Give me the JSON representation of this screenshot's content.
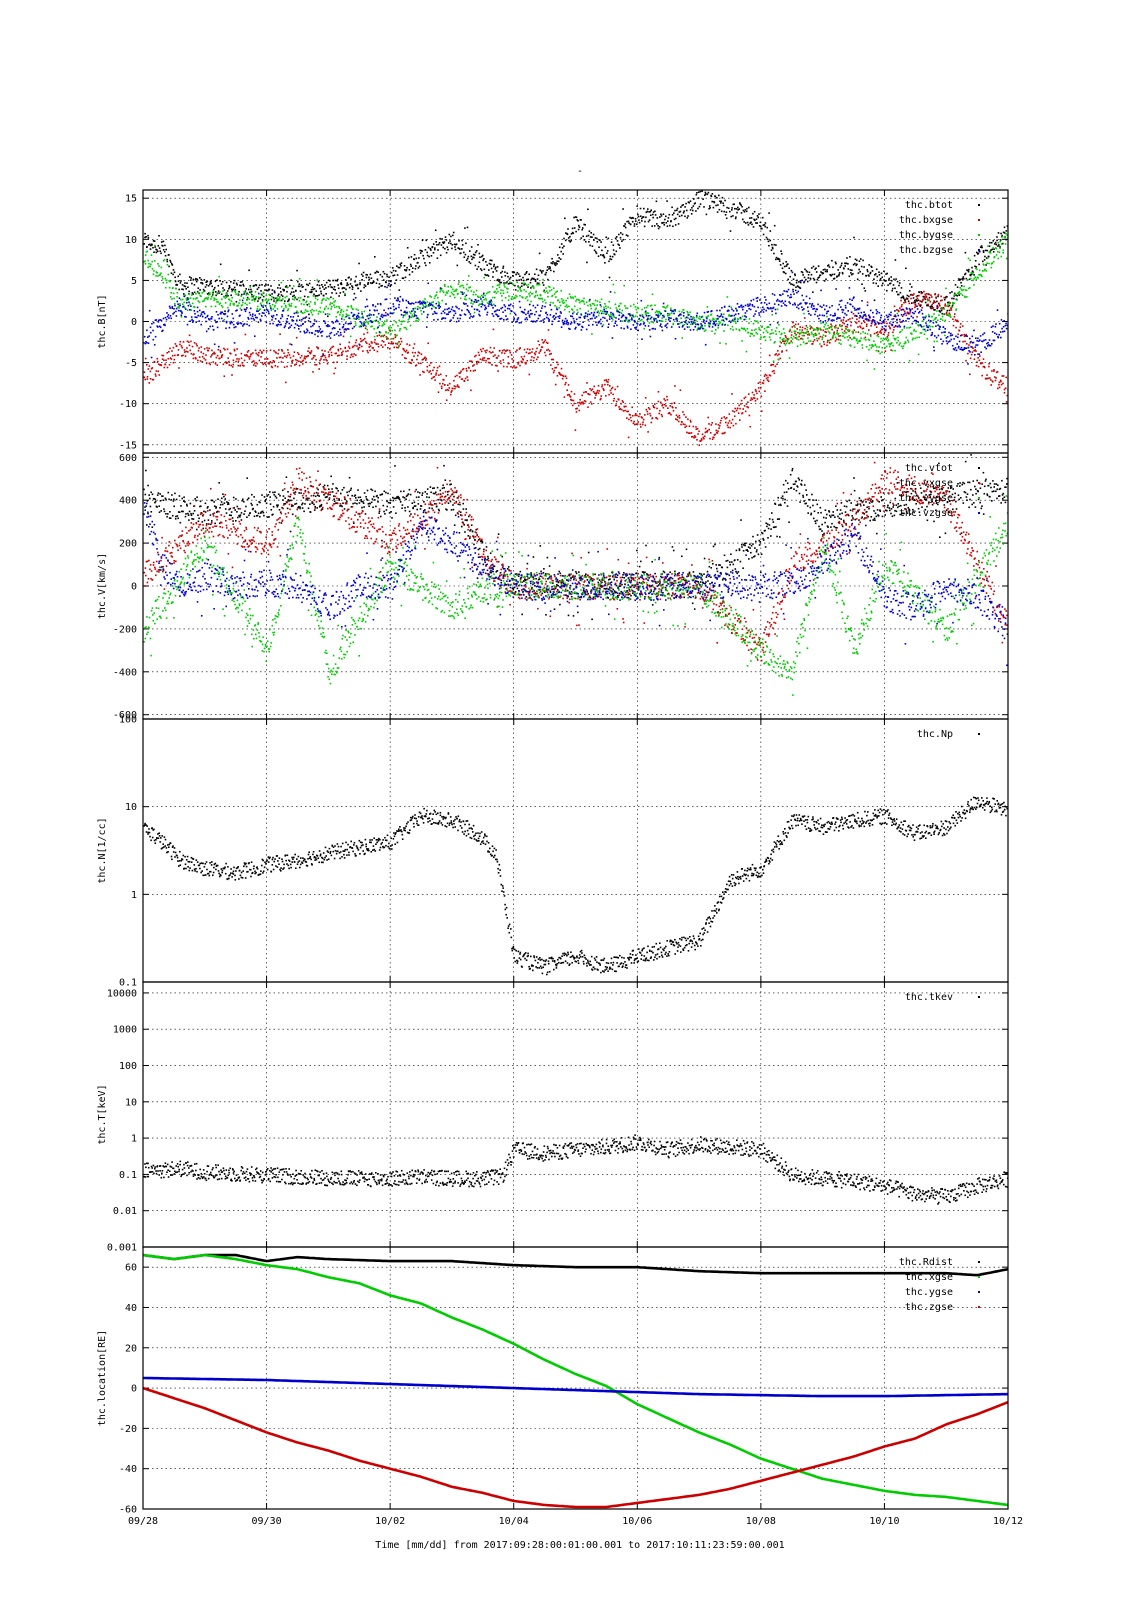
{
  "title": "-",
  "xlabel": "Time [mm/dd]  from 2017:09:28:00:01:00.001  to  2017:10:11:23:59:00.001",
  "colors": {
    "black": "#000000",
    "red": "#cc0000",
    "green": "#00cc00",
    "blue": "#0000cc"
  },
  "chart_data": [
    {
      "type": "scatter",
      "ylabel": "thc.B[nT]",
      "ylim": [
        -16,
        16
      ],
      "yscale": "linear",
      "yticks": [
        -15,
        -10,
        -5,
        0,
        5,
        10,
        15
      ],
      "ytick_labels": [
        "-15",
        "-10",
        "-5",
        "0",
        "5",
        "10",
        "15"
      ],
      "grid": true,
      "legend_placement": "top-right",
      "series": [
        {
          "name": "thc.btot",
          "color": "black",
          "x": [
            0,
            0.3,
            0.6,
            1,
            2,
            3,
            4,
            5,
            5.5,
            6,
            6.5,
            7,
            7.5,
            8,
            8.5,
            9,
            9.5,
            10,
            10.5,
            11,
            11.5,
            12,
            12.5,
            13,
            13.5,
            14
          ],
          "y": [
            10,
            9,
            4.5,
            4.5,
            3.5,
            4,
            5.5,
            10,
            7,
            5,
            5.5,
            12,
            8,
            13,
            12,
            15,
            14,
            12,
            5,
            6,
            7,
            5,
            3,
            2,
            8,
            11
          ]
        },
        {
          "name": "thc.bxgse",
          "color": "red",
          "x": [
            0,
            0.3,
            0.6,
            1,
            2,
            3,
            4,
            5,
            5.5,
            6,
            6.5,
            7,
            7.5,
            8,
            8.5,
            9,
            9.5,
            10,
            10.5,
            11,
            11.5,
            12,
            12.5,
            13,
            13.5,
            14
          ],
          "y": [
            -7,
            -5,
            -3,
            -4,
            -4.5,
            -4,
            -2,
            -8,
            -4,
            -4.5,
            -3,
            -10,
            -8,
            -12,
            -10,
            -14,
            -12,
            -8,
            -1,
            -2,
            0,
            -1,
            3,
            2,
            -5,
            -8
          ]
        },
        {
          "name": "thc.bygse",
          "color": "green",
          "x": [
            0,
            0.3,
            0.6,
            1,
            2,
            3,
            4,
            5,
            5.5,
            6,
            6.5,
            7,
            7.5,
            8,
            8.5,
            9,
            9.5,
            10,
            10.5,
            11,
            11.5,
            12,
            12.5,
            13,
            13.5,
            14
          ],
          "y": [
            8,
            6,
            2,
            3,
            2.5,
            2,
            -1,
            4,
            3,
            4,
            3.5,
            2,
            1.5,
            1,
            1,
            0,
            0,
            -1,
            -2,
            -1,
            -2,
            -3,
            -1,
            1,
            6,
            10
          ]
        },
        {
          "name": "thc.bzgse",
          "color": "blue",
          "x": [
            0,
            0.3,
            0.6,
            1,
            2,
            3,
            4,
            5,
            5.5,
            6,
            6.5,
            7,
            7.5,
            8,
            8.5,
            9,
            9.5,
            10,
            10.5,
            11,
            11.5,
            12,
            12.5,
            13,
            13.5,
            14
          ],
          "y": [
            -2,
            0,
            2,
            0,
            1,
            -1,
            2,
            1,
            2,
            1,
            1,
            0,
            0.5,
            0,
            0.5,
            0,
            1,
            2,
            3,
            1,
            2,
            0,
            1,
            -2,
            -3,
            0
          ]
        }
      ]
    },
    {
      "type": "scatter",
      "ylabel": "thc.V[km/s]",
      "ylim": [
        -620,
        620
      ],
      "yscale": "linear",
      "yticks": [
        -600,
        -400,
        -200,
        0,
        200,
        400,
        600
      ],
      "ytick_labels": [
        "-600",
        "-400",
        "-200",
        "0",
        "200",
        "400",
        "600"
      ],
      "grid": true,
      "legend_placement": "top-right",
      "series": [
        {
          "name": "thc.vtot",
          "color": "black",
          "x": [
            0,
            1,
            2,
            3,
            4,
            5,
            5.6,
            6,
            7,
            8,
            9,
            10,
            10.5,
            11,
            11.5,
            12,
            13,
            14
          ],
          "y": [
            400,
            350,
            380,
            420,
            380,
            420,
            100,
            10,
            10,
            10,
            10,
            200,
            500,
            300,
            350,
            380,
            420,
            450
          ]
        },
        {
          "name": "thc.vxgse",
          "color": "red",
          "x": [
            0,
            1,
            2,
            2.5,
            3,
            4,
            5,
            5.6,
            6,
            7,
            8,
            9,
            10,
            10.5,
            11,
            11.5,
            12,
            13,
            14
          ],
          "y": [
            50,
            300,
            200,
            500,
            400,
            200,
            450,
            100,
            0,
            0,
            0,
            0,
            -300,
            100,
            200,
            300,
            500,
            400,
            -200
          ]
        },
        {
          "name": "thc.vygse",
          "color": "green",
          "x": [
            0,
            1,
            2,
            2.5,
            3,
            4,
            5,
            5.6,
            6,
            7,
            8,
            9,
            10,
            10.5,
            11,
            11.5,
            12,
            13,
            14
          ],
          "y": [
            -200,
            200,
            -300,
            300,
            -400,
            100,
            -100,
            0,
            0,
            0,
            0,
            0,
            -300,
            -400,
            200,
            -300,
            100,
            -200,
            300
          ]
        },
        {
          "name": "thc.vzgse",
          "color": "blue",
          "x": [
            0,
            0.3,
            0.6,
            1,
            1.5,
            2,
            2.5,
            3,
            3.5,
            4,
            4.5,
            5,
            5.5,
            6,
            7,
            8,
            9,
            9.5,
            10,
            10.5,
            11,
            11.5,
            12,
            12.5,
            13,
            13.5,
            14
          ],
          "y": [
            400,
            100,
            0,
            50,
            0,
            20,
            0,
            -100,
            0,
            0,
            300,
            200,
            100,
            0,
            0,
            0,
            0,
            10,
            0,
            20,
            100,
            250,
            -50,
            -100,
            0,
            -50,
            -200
          ]
        }
      ]
    },
    {
      "type": "scatter",
      "ylabel": "thc.N[1/cc]",
      "ylim": [
        0.1,
        100
      ],
      "yscale": "log",
      "yticks": [
        0.1,
        1,
        10,
        100
      ],
      "ytick_labels": [
        "0.1",
        "1",
        "10",
        "100"
      ],
      "grid": true,
      "legend_placement": "top-right",
      "series": [
        {
          "name": "thc.Np",
          "color": "black",
          "x": [
            0,
            0.3,
            0.6,
            1,
            1.5,
            2,
            2.5,
            3,
            3.5,
            4,
            4.5,
            5,
            5.4,
            5.7,
            6,
            6.5,
            7,
            7.5,
            8,
            8.5,
            9,
            9.5,
            10,
            10.5,
            11,
            11.5,
            12,
            12.5,
            13,
            13.5,
            14
          ],
          "y": [
            6,
            4,
            2.5,
            2,
            1.8,
            2.2,
            2.5,
            3,
            3.5,
            4,
            8,
            7,
            5,
            3,
            0.2,
            0.15,
            0.2,
            0.15,
            0.2,
            0.25,
            0.3,
            1.5,
            2,
            7,
            6,
            7,
            8,
            5,
            6,
            12,
            9
          ]
        }
      ]
    },
    {
      "type": "scatter",
      "ylabel": "thc.T[keV]",
      "ylim": [
        0.001,
        20000
      ],
      "yscale": "log",
      "yticks": [
        0.001,
        0.01,
        0.1,
        1,
        10,
        100,
        1000,
        10000
      ],
      "ytick_labels": [
        "0.001",
        "0.01",
        "0.1",
        "1",
        "10",
        "100",
        "1000",
        "10000"
      ],
      "grid": true,
      "legend_placement": "top-right",
      "series": [
        {
          "name": "thc.tkev",
          "color": "black",
          "x": [
            0,
            0.3,
            0.6,
            1,
            1.5,
            2,
            2.5,
            3,
            3.5,
            4,
            4.5,
            5,
            5.5,
            5.8,
            6,
            6.5,
            7,
            7.5,
            8,
            8.5,
            9,
            9.5,
            10,
            10.5,
            11,
            11.5,
            12,
            12.5,
            13,
            13.5,
            14
          ],
          "y": [
            0.13,
            0.14,
            0.15,
            0.12,
            0.11,
            0.1,
            0.09,
            0.085,
            0.08,
            0.08,
            0.09,
            0.08,
            0.08,
            0.09,
            0.5,
            0.4,
            0.5,
            0.6,
            0.8,
            0.5,
            0.7,
            0.6,
            0.5,
            0.1,
            0.08,
            0.07,
            0.05,
            0.03,
            0.025,
            0.05,
            0.08
          ]
        }
      ]
    },
    {
      "type": "line",
      "ylabel": "thc.location[RE]",
      "ylim": [
        -60,
        70
      ],
      "yscale": "linear",
      "yticks": [
        -60,
        -40,
        -20,
        0,
        20,
        40,
        60
      ],
      "ytick_labels": [
        "-60",
        "-40",
        "-20",
        "0",
        "20",
        "40",
        "60"
      ],
      "grid": true,
      "legend_placement": "top-right",
      "series": [
        {
          "name": "thc.Rdist",
          "color": "black",
          "x": [
            0,
            0.5,
            1,
            1.5,
            2,
            2.5,
            3,
            4,
            5,
            6,
            7,
            8,
            9,
            10,
            11,
            12,
            13,
            13.5,
            14
          ],
          "y": [
            66,
            64,
            66,
            66,
            63,
            65,
            64,
            63,
            63,
            61,
            60,
            60,
            58,
            57,
            57,
            57,
            57,
            56,
            59
          ]
        },
        {
          "name": "thc.xgse",
          "color": "green",
          "x": [
            0,
            0.5,
            1,
            1.5,
            2,
            2.5,
            3,
            3.5,
            4,
            4.5,
            5,
            5.5,
            6,
            6.5,
            7,
            7.5,
            8,
            8.5,
            9,
            9.5,
            10,
            10.5,
            11,
            11.5,
            12,
            12.5,
            13,
            13.5,
            14
          ],
          "y": [
            66,
            64,
            66,
            64,
            61,
            59,
            55,
            52,
            46,
            42,
            35,
            29,
            22,
            14,
            7,
            1,
            -8,
            -15,
            -22,
            -28,
            -35,
            -40,
            -45,
            -48,
            -51,
            -53,
            -54,
            -56,
            -58
          ]
        },
        {
          "name": "thc.ygse",
          "color": "blue",
          "x": [
            0,
            1,
            2,
            3,
            4,
            5,
            6,
            7,
            8,
            9,
            10,
            11,
            12,
            13,
            14
          ],
          "y": [
            5,
            4.5,
            4,
            3,
            2,
            1,
            0,
            -1,
            -2,
            -3,
            -3.5,
            -4,
            -4,
            -3.5,
            -3
          ]
        },
        {
          "name": "thc.zgse",
          "color": "red",
          "x": [
            0,
            0.5,
            1,
            1.5,
            2,
            2.5,
            3,
            3.5,
            4,
            4.5,
            5,
            5.5,
            6,
            6.5,
            7,
            7.5,
            8,
            8.5,
            9,
            9.5,
            10,
            10.5,
            11,
            11.5,
            12,
            12.5,
            13,
            13.5,
            14
          ],
          "y": [
            0,
            -5,
            -10,
            -16,
            -22,
            -27,
            -31,
            -36,
            -40,
            -44,
            -49,
            -52,
            -56,
            -58,
            -59,
            -59,
            -57,
            -55,
            -53,
            -50,
            -46,
            -42,
            -38,
            -34,
            -29,
            -25,
            -18,
            -13,
            -7
          ]
        }
      ]
    }
  ],
  "x_axis": {
    "ticks": [
      0,
      2,
      4,
      6,
      8,
      10,
      12,
      14
    ],
    "tick_labels": [
      "09/28",
      "09/30",
      "10/02",
      "10/04",
      "10/06",
      "10/08",
      "10/10",
      "10/12"
    ],
    "xlim": [
      0,
      14
    ]
  }
}
